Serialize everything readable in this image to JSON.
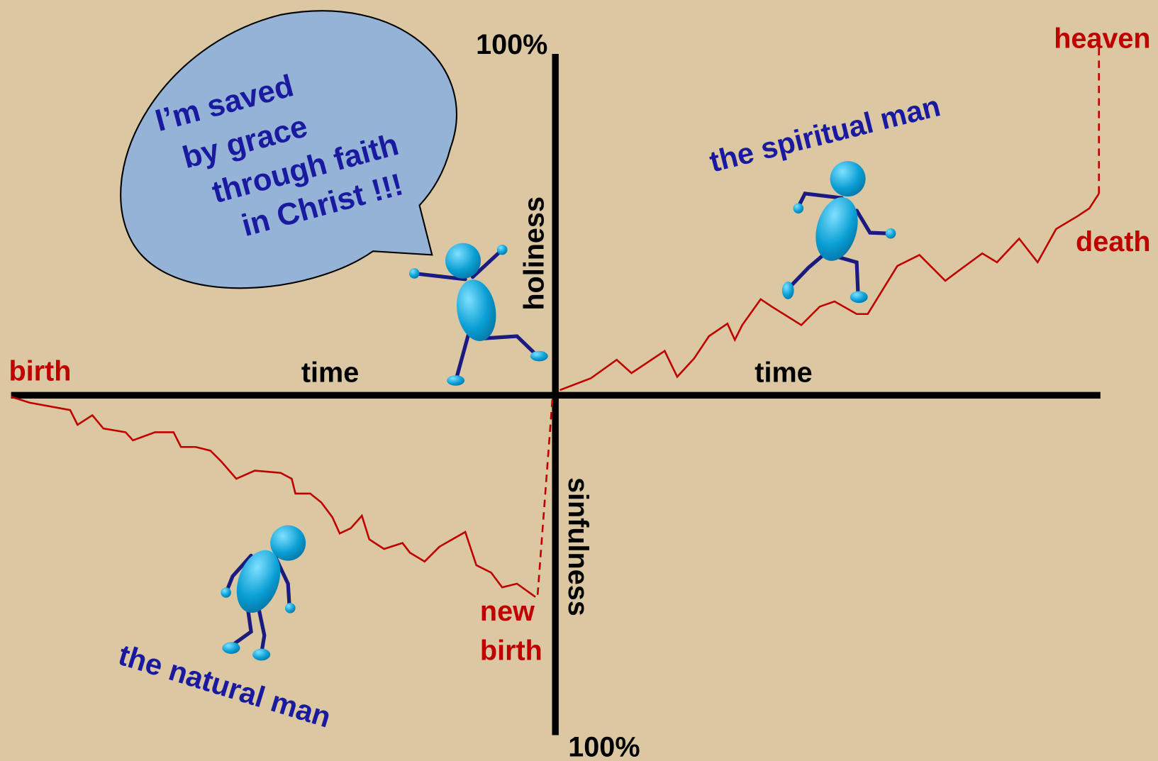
{
  "axes": {
    "up_end": "100%",
    "down_end": "100%",
    "up_label": "holiness",
    "down_label": "sinfulness",
    "left_label": "time",
    "right_label": "time"
  },
  "path_labels": {
    "birth": "birth",
    "new_birth": [
      "new",
      "birth"
    ],
    "heaven": "heaven",
    "death": "death"
  },
  "figures": {
    "spiritual": "the spiritual man",
    "natural": "the natural man"
  },
  "speech_bubble": {
    "lines": [
      "I’m saved",
      "by grace",
      "through faith",
      "in Christ !!!"
    ]
  }
}
